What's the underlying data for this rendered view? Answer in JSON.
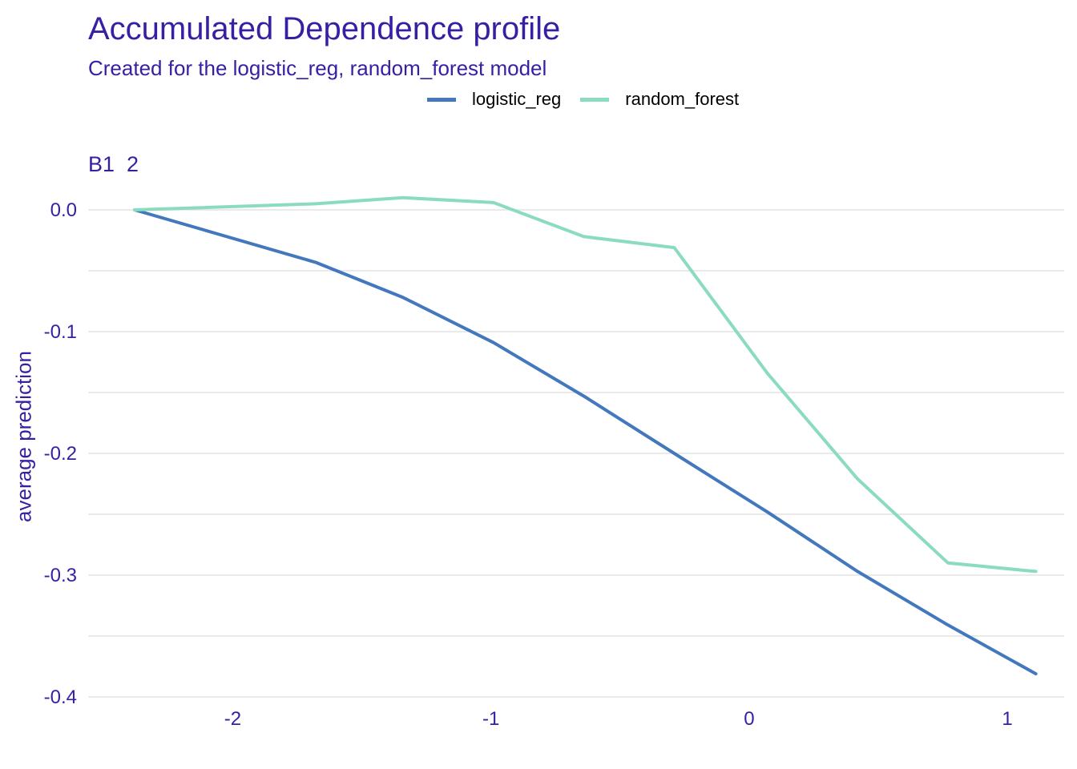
{
  "chart_data": {
    "type": "line",
    "title": "Accumulated Dependence profile",
    "subtitle": "Created for the logistic_reg, random_forest model",
    "facet_label": "B1  2",
    "xlabel": "",
    "ylabel": "average prediction",
    "xlim": [
      -2.56,
      1.22
    ],
    "ylim": [
      -0.4,
      0.0
    ],
    "x_ticks": [
      -2,
      -1,
      0,
      1
    ],
    "x_tick_labels": [
      "-2",
      "-1",
      "0",
      "1"
    ],
    "y_ticks": [
      0.0,
      -0.1,
      -0.2,
      -0.3,
      -0.4
    ],
    "y_tick_labels": [
      "0.0",
      "-0.1",
      "-0.2",
      "-0.3",
      "-0.4"
    ],
    "grid": true,
    "legend_position": "top",
    "series": [
      {
        "name": "logistic_reg",
        "color": "#4378bf",
        "x": [
          -2.38,
          -1.68,
          -1.34,
          -0.99,
          -0.64,
          -0.29,
          0.07,
          0.42,
          0.77,
          1.11
        ],
        "y": [
          0.0,
          -0.043,
          -0.072,
          -0.109,
          -0.153,
          -0.2,
          -0.248,
          -0.297,
          -0.341,
          -0.381
        ]
      },
      {
        "name": "random_forest",
        "color": "#8bdcbe",
        "x": [
          -2.38,
          -1.68,
          -1.34,
          -0.99,
          -0.64,
          -0.29,
          0.07,
          0.42,
          0.77,
          1.11
        ],
        "y": [
          0.0,
          0.005,
          0.01,
          0.006,
          -0.022,
          -0.031,
          -0.134,
          -0.221,
          -0.29,
          -0.297
        ]
      }
    ]
  }
}
